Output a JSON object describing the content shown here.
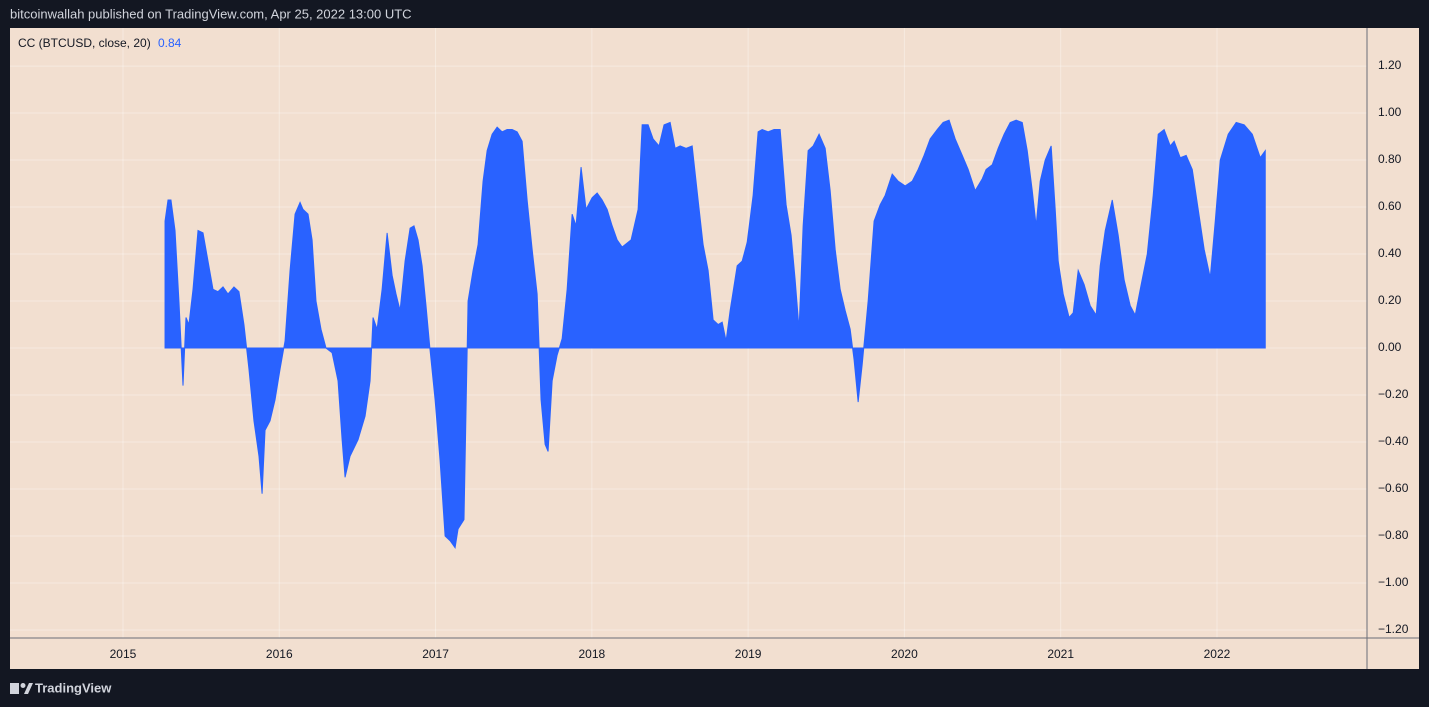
{
  "header": {
    "text": "bitcoinwallah published on TradingView.com, Apr 25, 2022 13:00 UTC"
  },
  "footer": {
    "brand": "TradingView"
  },
  "chart_data": {
    "type": "area",
    "background": "#f2dfd0",
    "grid": true,
    "x": [
      2015.269,
      2015.288,
      2015.307,
      2015.333,
      2015.358,
      2015.384,
      2015.403,
      2015.422,
      2015.448,
      2015.48,
      2015.512,
      2015.544,
      2015.576,
      2015.608,
      2015.64,
      2015.672,
      2015.71,
      2015.742,
      2015.774,
      2015.806,
      2015.838,
      2015.87,
      2015.89,
      2015.909,
      2015.941,
      2015.973,
      2016.005,
      2016.037,
      2016.069,
      2016.101,
      2016.133,
      2016.152,
      2016.184,
      2016.21,
      2016.235,
      2016.267,
      2016.299,
      2016.338,
      2016.376,
      2016.402,
      2016.421,
      2016.453,
      2016.504,
      2016.549,
      2016.581,
      2016.6,
      2016.626,
      2016.658,
      2016.69,
      2016.722,
      2016.747,
      2016.773,
      2016.805,
      2016.837,
      2016.862,
      2016.888,
      2016.914,
      2016.939,
      2016.965,
      2016.997,
      2017.029,
      2017.061,
      2017.093,
      2017.125,
      2017.144,
      2017.182,
      2017.208,
      2017.24,
      2017.272,
      2017.304,
      2017.33,
      2017.362,
      2017.394,
      2017.426,
      2017.458,
      2017.49,
      2017.522,
      2017.554,
      2017.586,
      2017.618,
      2017.65,
      2017.675,
      2017.701,
      2017.72,
      2017.746,
      2017.778,
      2017.81,
      2017.842,
      2017.874,
      2017.899,
      2017.931,
      2017.963,
      2018.002,
      2018.034,
      2018.066,
      2018.098,
      2018.13,
      2018.162,
      2018.194,
      2018.251,
      2018.296,
      2018.322,
      2018.36,
      2018.392,
      2018.43,
      2018.462,
      2018.501,
      2018.533,
      2018.565,
      2018.603,
      2018.642,
      2018.68,
      2018.712,
      2018.744,
      2018.776,
      2018.808,
      2018.834,
      2018.859,
      2018.885,
      2018.93,
      2018.962,
      2018.994,
      2019.032,
      2019.064,
      2019.09,
      2019.128,
      2019.166,
      2019.205,
      2019.243,
      2019.275,
      2019.301,
      2019.326,
      2019.352,
      2019.384,
      2019.416,
      2019.454,
      2019.493,
      2019.525,
      2019.557,
      2019.589,
      2019.621,
      2019.653,
      2019.678,
      2019.704,
      2019.73,
      2019.768,
      2019.806,
      2019.845,
      2019.877,
      2019.922,
      2019.96,
      2020.005,
      2020.05,
      2020.088,
      2020.126,
      2020.165,
      2020.21,
      2020.248,
      2020.286,
      2020.325,
      2020.37,
      2020.408,
      2020.453,
      2020.498,
      2020.523,
      2020.562,
      2020.6,
      2020.638,
      2020.677,
      2020.715,
      2020.754,
      2020.786,
      2020.818,
      2020.843,
      2020.869,
      2020.901,
      2020.939,
      2020.965,
      2020.984,
      2021.016,
      2021.054,
      2021.08,
      2021.112,
      2021.15,
      2021.189,
      2021.227,
      2021.253,
      2021.285,
      2021.33,
      2021.368,
      2021.406,
      2021.445,
      2021.477,
      2021.515,
      2021.554,
      2021.592,
      2021.624,
      2021.662,
      2021.701,
      2021.726,
      2021.765,
      2021.803,
      2021.842,
      2021.88,
      2021.918,
      2021.957,
      2021.989,
      2022.021,
      2022.072,
      2022.123,
      2022.174,
      2022.226,
      2022.277,
      2022.309
    ],
    "series": [
      {
        "name": "CC (BTCUSD, close, 20)",
        "color": "#2962ff",
        "values": [
          0.54,
          0.63,
          0.63,
          0.5,
          0.2,
          -0.16,
          0.13,
          0.1,
          0.25,
          0.5,
          0.49,
          0.37,
          0.25,
          0.24,
          0.26,
          0.23,
          0.26,
          0.24,
          0.1,
          -0.09,
          -0.31,
          -0.46,
          -0.62,
          -0.35,
          -0.31,
          -0.22,
          -0.09,
          0.03,
          0.33,
          0.57,
          0.62,
          0.59,
          0.57,
          0.46,
          0.2,
          0.08,
          0.0,
          -0.02,
          -0.14,
          -0.39,
          -0.55,
          -0.46,
          -0.39,
          -0.29,
          -0.14,
          0.13,
          0.08,
          0.25,
          0.49,
          0.31,
          0.23,
          0.16,
          0.37,
          0.51,
          0.52,
          0.46,
          0.35,
          0.18,
          -0.01,
          -0.22,
          -0.48,
          -0.8,
          -0.82,
          -0.85,
          -0.77,
          -0.73,
          0.2,
          0.33,
          0.44,
          0.71,
          0.84,
          0.91,
          0.94,
          0.92,
          0.93,
          0.93,
          0.92,
          0.88,
          0.63,
          0.42,
          0.23,
          -0.22,
          -0.41,
          -0.44,
          -0.14,
          -0.03,
          0.04,
          0.25,
          0.57,
          0.52,
          0.77,
          0.59,
          0.64,
          0.66,
          0.63,
          0.59,
          0.52,
          0.46,
          0.43,
          0.46,
          0.59,
          0.95,
          0.95,
          0.89,
          0.86,
          0.95,
          0.96,
          0.85,
          0.86,
          0.85,
          0.86,
          0.63,
          0.44,
          0.33,
          0.12,
          0.1,
          0.11,
          0.03,
          0.16,
          0.35,
          0.37,
          0.45,
          0.65,
          0.92,
          0.93,
          0.92,
          0.93,
          0.93,
          0.61,
          0.48,
          0.29,
          0.08,
          0.52,
          0.84,
          0.86,
          0.91,
          0.85,
          0.67,
          0.42,
          0.25,
          0.16,
          0.08,
          -0.05,
          -0.23,
          -0.07,
          0.2,
          0.54,
          0.61,
          0.65,
          0.74,
          0.71,
          0.69,
          0.71,
          0.76,
          0.82,
          0.89,
          0.93,
          0.96,
          0.97,
          0.89,
          0.82,
          0.76,
          0.67,
          0.72,
          0.76,
          0.78,
          0.85,
          0.91,
          0.96,
          0.97,
          0.96,
          0.84,
          0.67,
          0.52,
          0.71,
          0.8,
          0.86,
          0.59,
          0.37,
          0.23,
          0.13,
          0.15,
          0.33,
          0.27,
          0.18,
          0.14,
          0.35,
          0.5,
          0.63,
          0.48,
          0.29,
          0.18,
          0.14,
          0.27,
          0.4,
          0.65,
          0.91,
          0.93,
          0.86,
          0.88,
          0.81,
          0.82,
          0.76,
          0.59,
          0.42,
          0.3,
          0.54,
          0.8,
          0.91,
          0.96,
          0.95,
          0.91,
          0.81,
          0.84
        ]
      }
    ],
    "xlim": [
      2014.277,
      2022.96
    ],
    "xticks": [
      2015,
      2016,
      2017,
      2018,
      2019,
      2020,
      2021,
      2022
    ],
    "ylim": [
      -1.234,
      1.362
    ],
    "yticks": [
      {
        "value": 1.2,
        "label": "1.20"
      },
      {
        "value": 1.0,
        "label": "1.00"
      },
      {
        "value": 0.8,
        "label": "0.80"
      },
      {
        "value": 0.6,
        "label": "0.60"
      },
      {
        "value": 0.4,
        "label": "0.40"
      },
      {
        "value": 0.2,
        "label": "0.20"
      },
      {
        "value": 0,
        "label": "0.00"
      },
      {
        "value": -0.2,
        "label": "−0.20"
      },
      {
        "value": -0.4,
        "label": "−0.40"
      },
      {
        "value": -0.6,
        "label": "−0.60"
      },
      {
        "value": -0.8,
        "label": "−0.80"
      },
      {
        "value": -1.0,
        "label": "−1.00"
      },
      {
        "value": -1.2,
        "label": "−1.20"
      }
    ]
  }
}
